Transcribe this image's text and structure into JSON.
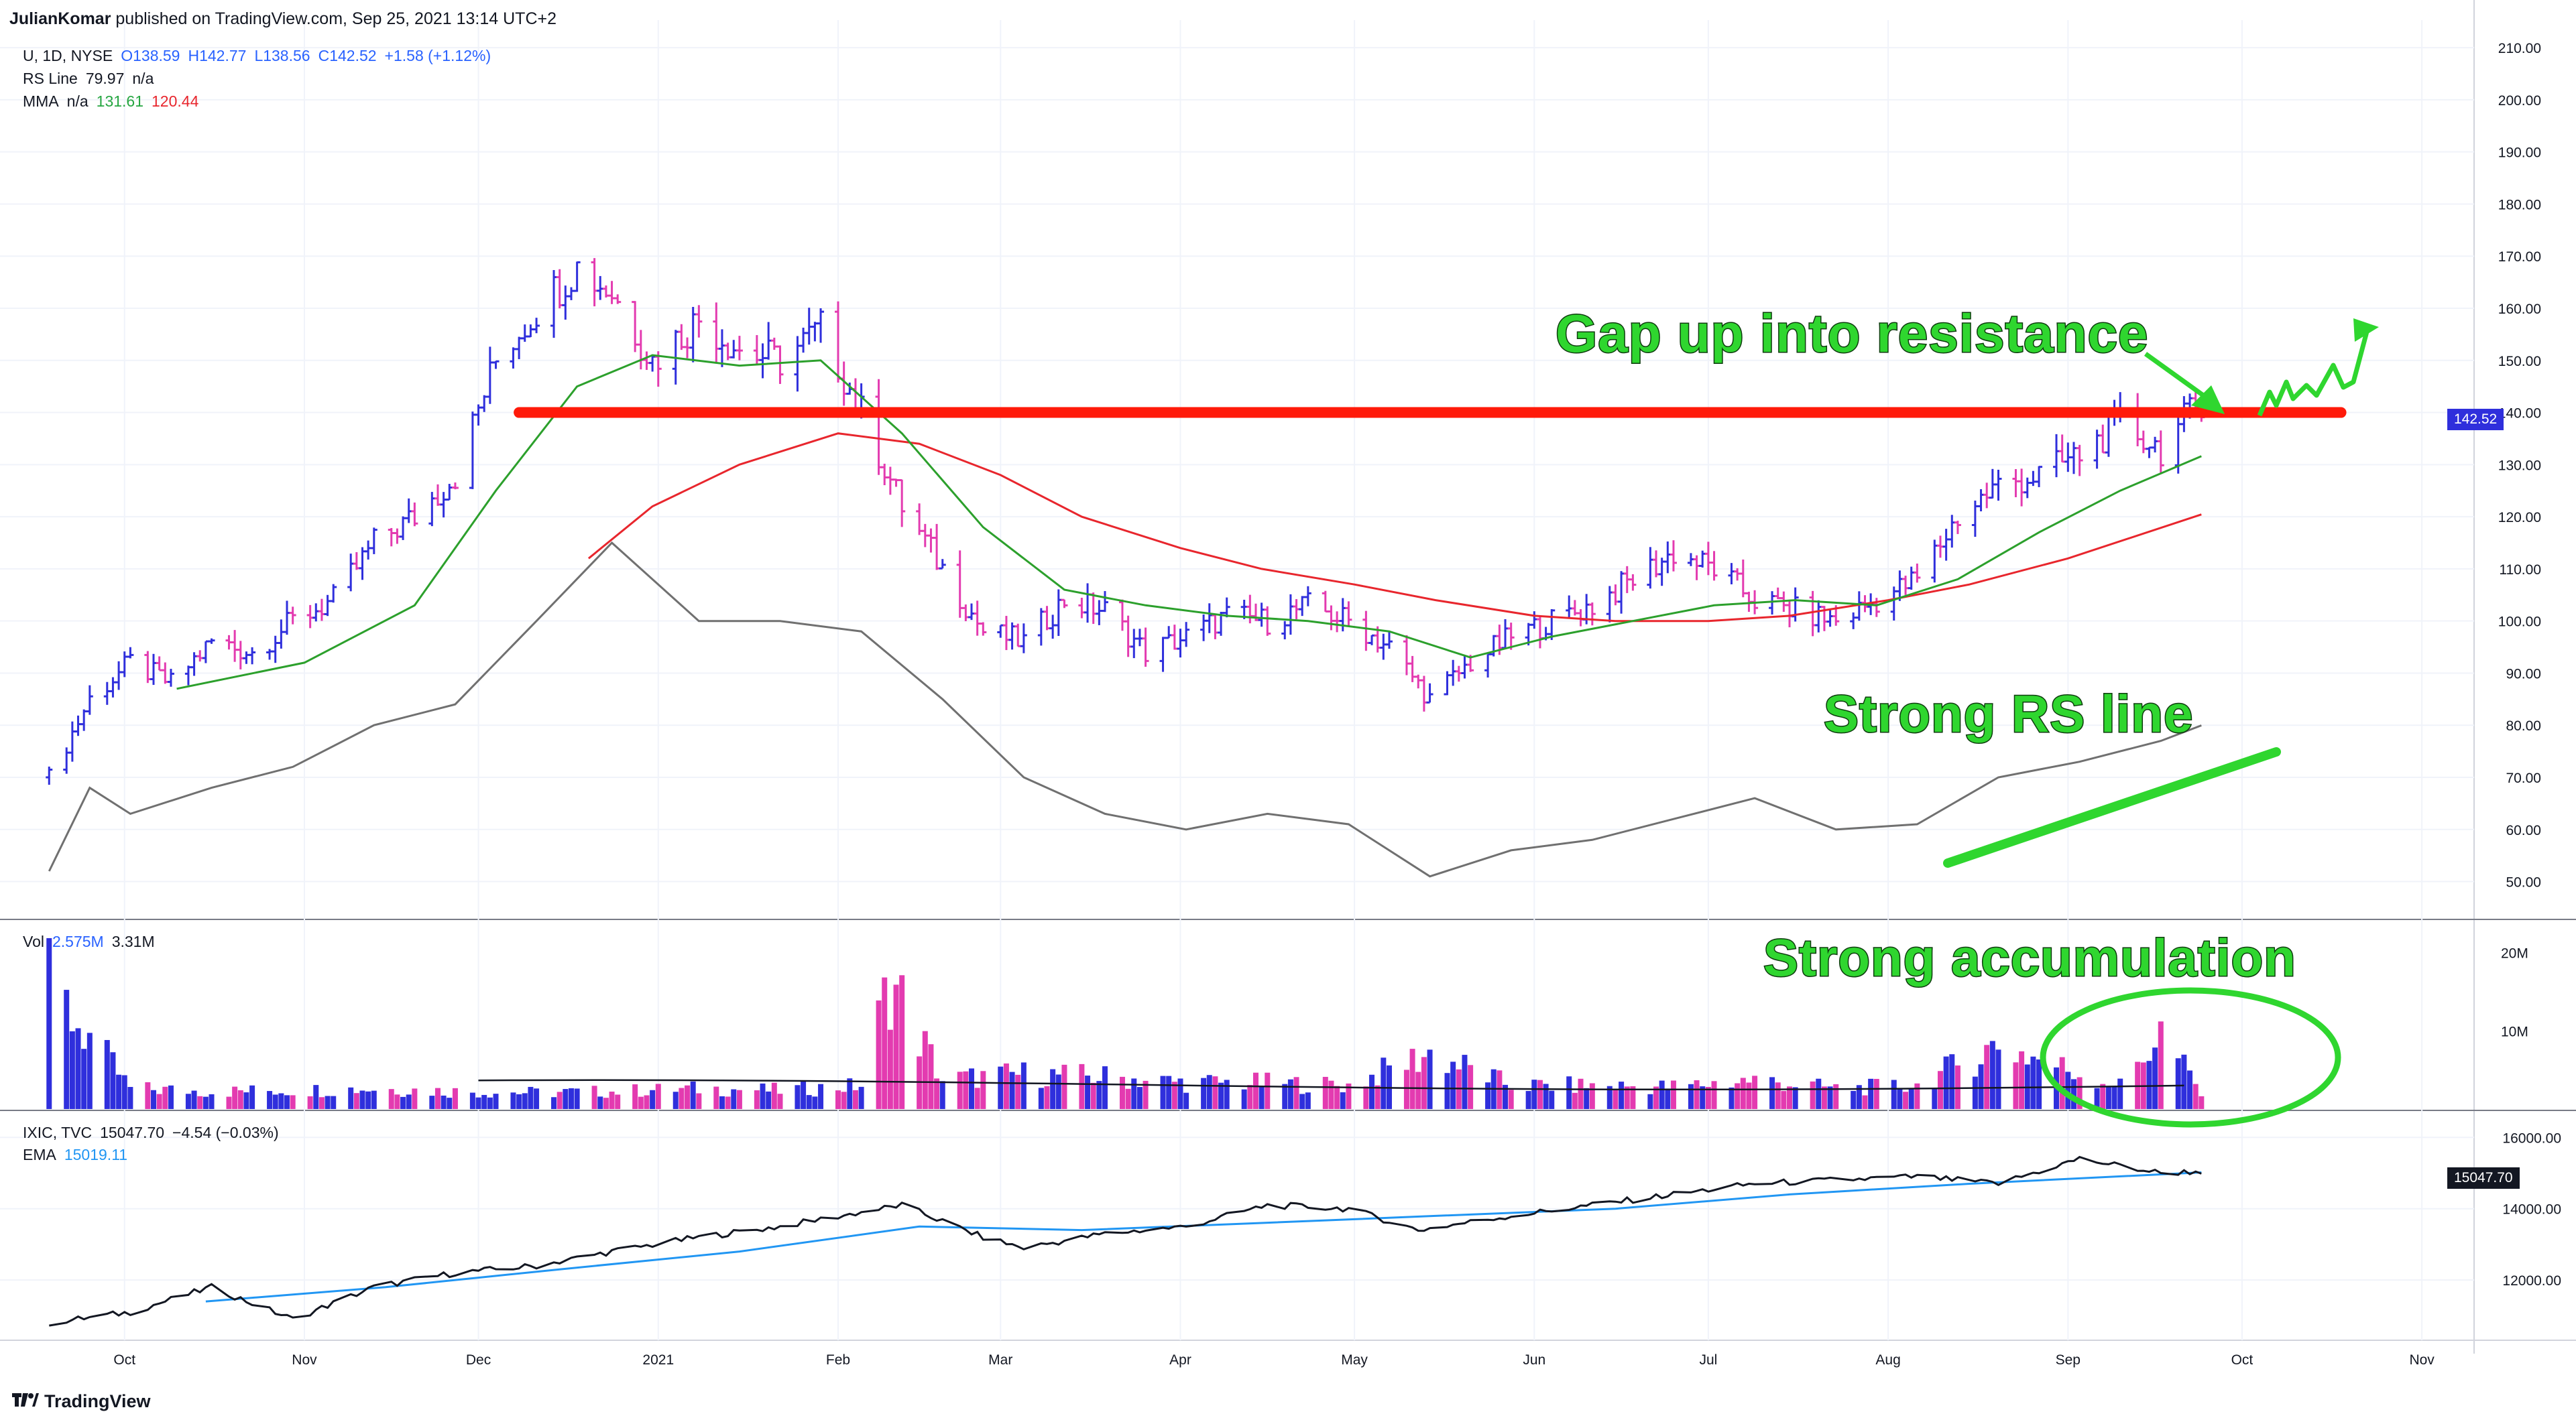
{
  "header": {
    "author": "JulianKomar",
    "published_text": "published on TradingView.com, Sep 25, 2021 13:14 UTC+2"
  },
  "price_legend": {
    "symbol": "U, 1D, NYSE",
    "open": "O138.59",
    "high": "H142.77",
    "low": "L138.56",
    "close": "C142.52",
    "change": "+1.58 (+1.12%)"
  },
  "rs_legend": {
    "name": "RS Line",
    "value": "79.97",
    "extra": "n/a"
  },
  "mma_legend": {
    "name": "MMA",
    "extra": "n/a",
    "fast": "131.61",
    "slow": "120.44"
  },
  "vol_legend": {
    "name": "Vol",
    "value": "2.575M",
    "ma": "3.31M"
  },
  "ixic_legend": {
    "symbol": "IXIC, TVC",
    "value": "15047.70",
    "change": "−4.54 (−0.03%)"
  },
  "ema_legend": {
    "name": "EMA",
    "value": "15019.11"
  },
  "price_tag": "142.52",
  "ixic_tag": "15047.70",
  "annotations": {
    "gap": "Gap up into resistance",
    "rs": "Strong RS line",
    "accumulation": "Strong accumulation"
  },
  "branding": "TradingView",
  "colors": {
    "up": "#2f2fdc",
    "down": "#e33bb0",
    "ma_fast": "#2ca02c",
    "ma_slow": "#e8262d",
    "rs_line": "#707070",
    "resistance": "#ff1a0a",
    "annotation": "#2fd62f",
    "ema": "#2196f3",
    "ixic": "#131722",
    "vol_ma": "#131722"
  },
  "chart_data": {
    "type": "line",
    "symbol": "U",
    "interval": "1D",
    "x_axis_labels": [
      "Oct",
      "Nov",
      "Dec",
      "2021",
      "Feb",
      "Mar",
      "Apr",
      "May",
      "Jun",
      "Jul",
      "Aug",
      "Sep",
      "Oct",
      "Nov"
    ],
    "x_axis_dates": [
      "2020-10-01",
      "2020-11-01",
      "2020-12-01",
      "2021-01-01",
      "2021-02-01",
      "2021-03-01",
      "2021-04-01",
      "2021-05-01",
      "2021-06-01",
      "2021-07-01",
      "2021-08-01",
      "2021-09-01",
      "2021-10-01",
      "2021-11-01"
    ],
    "x_range": [
      "2020-09-13",
      "2021-11-10"
    ],
    "price_panel": {
      "y_ticks": [
        50,
        60,
        70,
        80,
        90,
        100,
        110,
        120,
        130,
        140,
        150,
        160,
        170,
        180,
        190,
        200,
        210
      ],
      "ylim": [
        43,
        214
      ],
      "close_series": {
        "name": "U",
        "dates": [
          "2020-09-18",
          "2020-09-25",
          "2020-10-02",
          "2020-10-09",
          "2020-10-16",
          "2020-10-23",
          "2020-10-30",
          "2020-11-06",
          "2020-11-13",
          "2020-11-20",
          "2020-11-27",
          "2020-12-04",
          "2020-12-11",
          "2020-12-18",
          "2020-12-24",
          "2020-12-31",
          "2021-01-08",
          "2021-01-15",
          "2021-01-22",
          "2021-01-29",
          "2021-02-05",
          "2021-02-12",
          "2021-02-19",
          "2021-02-26",
          "2021-03-05",
          "2021-03-12",
          "2021-03-19",
          "2021-03-26",
          "2021-04-02",
          "2021-04-09",
          "2021-04-16",
          "2021-04-23",
          "2021-04-30",
          "2021-05-07",
          "2021-05-14",
          "2021-05-21",
          "2021-05-28",
          "2021-06-04",
          "2021-06-11",
          "2021-06-18",
          "2021-06-25",
          "2021-07-02",
          "2021-07-09",
          "2021-07-16",
          "2021-07-23",
          "2021-07-30",
          "2021-08-06",
          "2021-08-13",
          "2021-08-20",
          "2021-08-27",
          "2021-09-03",
          "2021-09-10",
          "2021-09-17",
          "2021-09-24"
        ],
        "values": [
          70,
          85,
          92,
          88,
          96,
          94,
          100,
          104,
          115,
          120,
          128,
          150,
          160,
          168,
          163,
          150,
          158,
          152,
          150,
          156,
          140,
          122,
          110,
          98,
          96,
          104,
          102,
          94,
          97,
          101,
          100,
          103,
          100,
          95,
          85,
          92,
          97,
          100,
          103,
          108,
          113,
          110,
          104,
          102,
          100,
          104,
          108,
          120,
          126,
          128,
          132,
          138,
          133,
          142.52
        ]
      },
      "ma_fast": {
        "name": "MMA 131.61",
        "dates": [
          "2020-10-10",
          "2020-11-01",
          "2020-11-20",
          "2020-12-04",
          "2020-12-18",
          "2020-12-31",
          "2021-01-15",
          "2021-01-29",
          "2021-02-12",
          "2021-02-26",
          "2021-03-12",
          "2021-03-26",
          "2021-04-09",
          "2021-04-23",
          "2021-05-07",
          "2021-05-21",
          "2021-06-04",
          "2021-06-18",
          "2021-07-02",
          "2021-07-16",
          "2021-07-30",
          "2021-08-13",
          "2021-08-27",
          "2021-09-10",
          "2021-09-24"
        ],
        "values": [
          87,
          92,
          103,
          125,
          145,
          151,
          149,
          150,
          136,
          118,
          106,
          103,
          101,
          100,
          98,
          93,
          97,
          100,
          103,
          104,
          103,
          108,
          117,
          125,
          131.61
        ]
      },
      "ma_slow": {
        "name": "MMA 120.44",
        "dates": [
          "2020-12-20",
          "2020-12-31",
          "2021-01-15",
          "2021-02-01",
          "2021-02-15",
          "2021-03-01",
          "2021-03-15",
          "2021-04-01",
          "2021-04-15",
          "2021-05-01",
          "2021-05-15",
          "2021-06-01",
          "2021-06-15",
          "2021-07-01",
          "2021-07-15",
          "2021-08-01",
          "2021-08-15",
          "2021-09-01",
          "2021-09-24"
        ],
        "values": [
          112,
          122,
          130,
          136,
          134,
          128,
          120,
          114,
          110,
          107,
          104,
          101,
          100,
          100,
          101,
          104,
          107,
          112,
          120.44
        ]
      },
      "rs_line": {
        "name": "RS Line",
        "dates": [
          "2020-09-18",
          "2020-09-25",
          "2020-10-02",
          "2020-10-16",
          "2020-10-30",
          "2020-11-13",
          "2020-11-27",
          "2020-12-11",
          "2020-12-24",
          "2021-01-08",
          "2021-01-22",
          "2021-02-05",
          "2021-02-19",
          "2021-03-05",
          "2021-03-19",
          "2021-04-02",
          "2021-04-16",
          "2021-04-30",
          "2021-05-14",
          "2021-05-28",
          "2021-06-11",
          "2021-06-25",
          "2021-07-09",
          "2021-07-23",
          "2021-08-06",
          "2021-08-20",
          "2021-09-03",
          "2021-09-17",
          "2021-09-24"
        ],
        "values": [
          52,
          68,
          63,
          68,
          72,
          80,
          84,
          100,
          115,
          100,
          100,
          98,
          85,
          70,
          63,
          60,
          63,
          61,
          51,
          56,
          58,
          62,
          66,
          60,
          61,
          70,
          73,
          77,
          79.97
        ]
      },
      "resistance": {
        "value": 140,
        "from": "2020-12-08",
        "to": "2021-10-25"
      }
    },
    "volume_panel": {
      "y_ticks": [
        "10M",
        "20M"
      ],
      "ylim": [
        0,
        24
      ],
      "unit": "M",
      "dates": [
        "2020-09-18",
        "2020-10-02",
        "2020-10-16",
        "2020-10-30",
        "2020-11-13",
        "2020-11-27",
        "2020-12-11",
        "2020-12-24",
        "2021-01-08",
        "2021-01-22",
        "2021-02-05",
        "2021-02-10",
        "2021-02-19",
        "2021-03-05",
        "2021-03-19",
        "2021-04-02",
        "2021-04-16",
        "2021-04-30",
        "2021-05-14",
        "2021-05-28",
        "2021-06-11",
        "2021-06-25",
        "2021-07-09",
        "2021-07-23",
        "2021-08-06",
        "2021-08-20",
        "2021-09-03",
        "2021-09-10",
        "2021-09-17",
        "2021-09-24"
      ],
      "values": [
        21,
        3.5,
        3,
        3.2,
        3.5,
        3,
        2.8,
        3,
        3.5,
        3.2,
        4,
        22,
        5,
        6,
        5.5,
        4.5,
        4.5,
        4,
        9.5,
        4,
        4,
        3.8,
        5,
        3.5,
        4,
        11,
        6,
        4,
        13,
        2.575
      ],
      "ma_label": "3.31M"
    },
    "ixic_panel": {
      "y_ticks": [
        12000,
        14000,
        16000
      ],
      "ylim": [
        10500,
        16700
      ],
      "close_series": {
        "name": "IXIC",
        "dates": [
          "2020-09-18",
          "2020-10-02",
          "2020-10-16",
          "2020-10-30",
          "2020-11-13",
          "2020-11-27",
          "2020-12-11",
          "2020-12-24",
          "2021-01-08",
          "2021-01-22",
          "2021-02-12",
          "2021-02-26",
          "2021-03-05",
          "2021-03-19",
          "2021-04-02",
          "2021-04-16",
          "2021-04-30",
          "2021-05-12",
          "2021-05-28",
          "2021-06-11",
          "2021-06-25",
          "2021-07-09",
          "2021-07-23",
          "2021-08-06",
          "2021-08-20",
          "2021-09-03",
          "2021-09-17",
          "2021-09-24"
        ],
        "values": [
          10800,
          11100,
          11800,
          10900,
          11800,
          12200,
          12400,
          12800,
          13200,
          13500,
          14100,
          13200,
          12900,
          13300,
          13500,
          14100,
          14000,
          13400,
          13800,
          14100,
          14400,
          14700,
          14800,
          14900,
          14700,
          15400,
          15000,
          15047.7
        ]
      },
      "ema": {
        "name": "EMA",
        "dates": [
          "2020-10-15",
          "2020-11-15",
          "2020-12-15",
          "2021-01-15",
          "2021-02-15",
          "2021-03-15",
          "2021-04-15",
          "2021-05-15",
          "2021-06-15",
          "2021-07-15",
          "2021-08-15",
          "2021-09-24"
        ],
        "values": [
          11400,
          11800,
          12300,
          12800,
          13500,
          13400,
          13600,
          13800,
          14000,
          14400,
          14700,
          15019.11
        ]
      }
    }
  }
}
